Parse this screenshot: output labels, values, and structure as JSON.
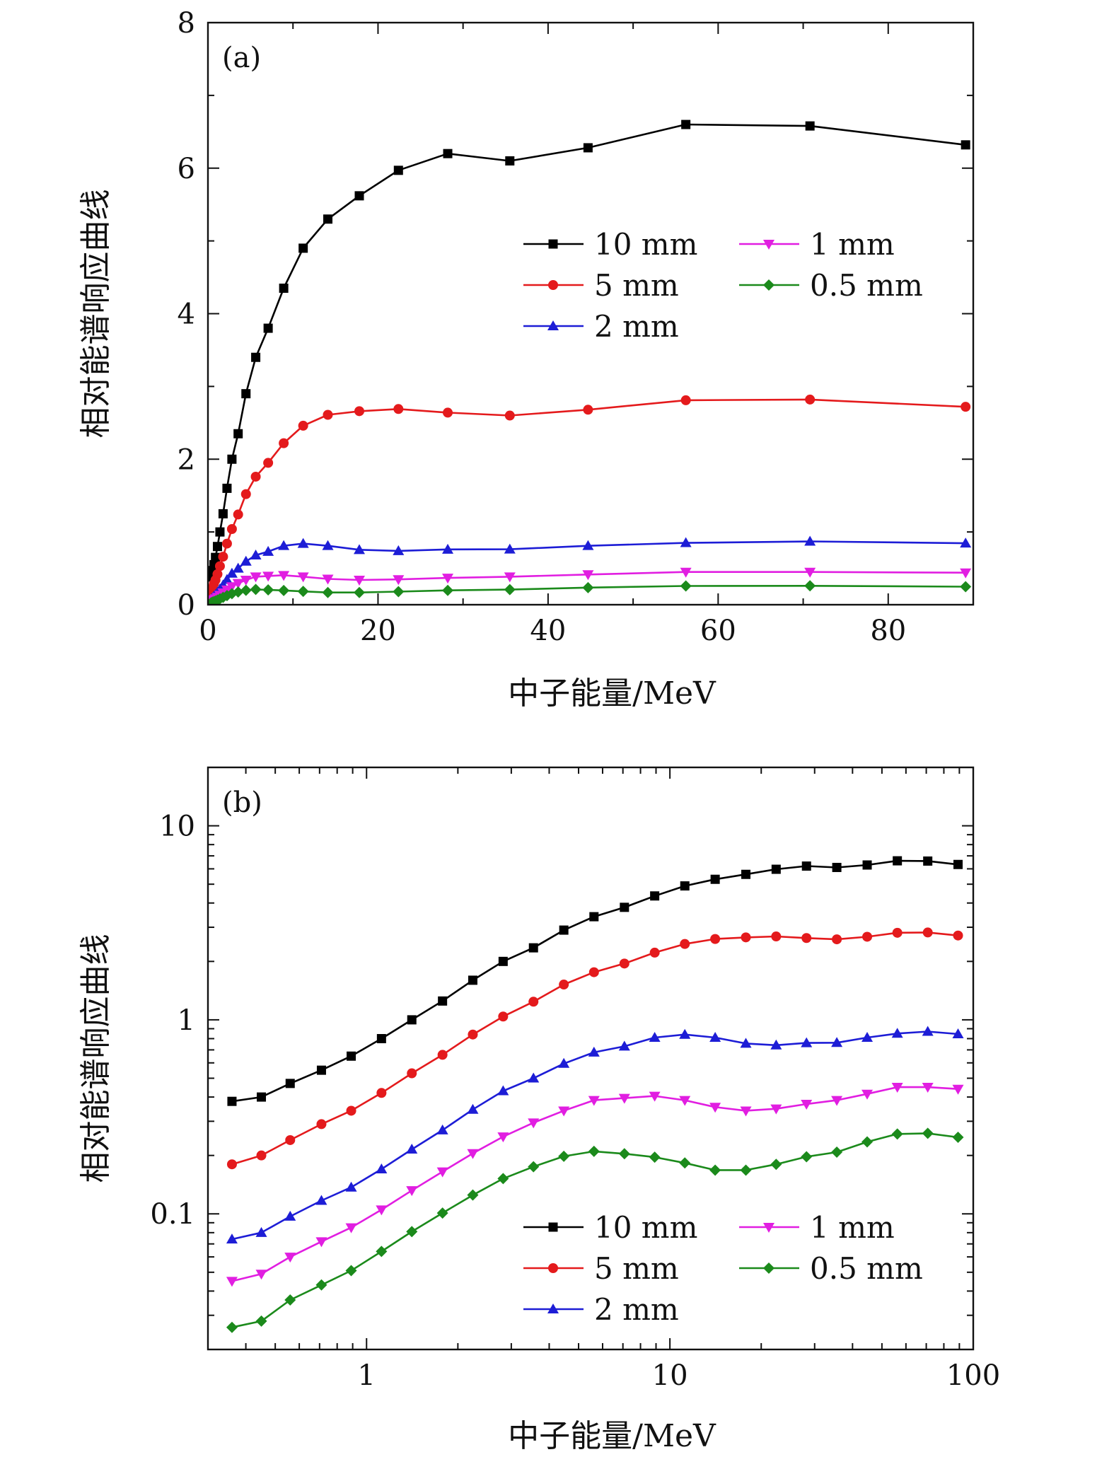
{
  "chart_data": [
    {
      "panel_label": "(a)",
      "type": "line",
      "xscale": "linear",
      "yscale": "linear",
      "xlim": [
        0,
        90
      ],
      "ylim": [
        0,
        8
      ],
      "xticks": [
        0,
        20,
        40,
        60,
        80
      ],
      "xtick_labels": [
        "0",
        "20",
        "40",
        "60",
        "80"
      ],
      "yticks": [
        0,
        2,
        4,
        6,
        8
      ],
      "ytick_labels": [
        "0",
        "2",
        "4",
        "6",
        "8"
      ],
      "xlabel": "中子能量/MeV",
      "ylabel": "相对能谱响应曲线",
      "legend_position": "upper-right",
      "x": [
        0.36,
        0.45,
        0.56,
        0.71,
        0.89,
        1.12,
        1.41,
        1.78,
        2.24,
        2.82,
        3.55,
        4.47,
        5.62,
        7.08,
        8.91,
        11.2,
        14.1,
        17.8,
        22.4,
        28.2,
        35.5,
        44.7,
        56.2,
        70.8,
        89.1
      ],
      "series": [
        {
          "name": "10 mm",
          "color": "#000000",
          "marker": "square",
          "values": [
            0.38,
            0.4,
            0.47,
            0.55,
            0.65,
            0.8,
            1.0,
            1.25,
            1.6,
            2.0,
            2.35,
            2.9,
            3.4,
            3.8,
            4.35,
            4.9,
            5.3,
            5.62,
            5.97,
            6.2,
            6.1,
            6.28,
            6.6,
            6.58,
            6.32
          ]
        },
        {
          "name": "5 mm",
          "color": "#e41a1c",
          "marker": "circle",
          "values": [
            0.18,
            0.2,
            0.24,
            0.29,
            0.34,
            0.42,
            0.53,
            0.66,
            0.84,
            1.04,
            1.24,
            1.52,
            1.76,
            1.95,
            2.22,
            2.46,
            2.61,
            2.66,
            2.69,
            2.64,
            2.6,
            2.68,
            2.81,
            2.82,
            2.72
          ]
        },
        {
          "name": "2 mm",
          "color": "#1d1dd6",
          "marker": "triangle-up",
          "values": [
            0.074,
            0.08,
            0.097,
            0.117,
            0.137,
            0.17,
            0.215,
            0.27,
            0.345,
            0.43,
            0.5,
            0.595,
            0.68,
            0.73,
            0.81,
            0.84,
            0.81,
            0.755,
            0.74,
            0.76,
            0.762,
            0.81,
            0.85,
            0.87,
            0.845
          ]
        },
        {
          "name": "1 mm",
          "color": "#e11ee1",
          "marker": "triangle-down",
          "values": [
            0.045,
            0.049,
            0.06,
            0.072,
            0.085,
            0.105,
            0.132,
            0.165,
            0.205,
            0.25,
            0.295,
            0.34,
            0.385,
            0.395,
            0.405,
            0.385,
            0.355,
            0.34,
            0.348,
            0.368,
            0.385,
            0.415,
            0.45,
            0.45,
            0.44
          ]
        },
        {
          "name": "0.5 mm",
          "color": "#1b8a1b",
          "marker": "diamond",
          "values": [
            0.026,
            0.028,
            0.036,
            0.043,
            0.051,
            0.064,
            0.081,
            0.101,
            0.125,
            0.152,
            0.175,
            0.198,
            0.21,
            0.204,
            0.196,
            0.183,
            0.168,
            0.168,
            0.18,
            0.197,
            0.208,
            0.235,
            0.258,
            0.26,
            0.248
          ]
        }
      ]
    },
    {
      "panel_label": "(b)",
      "type": "line",
      "xscale": "log",
      "yscale": "log",
      "xlim": [
        0.3,
        100
      ],
      "ylim": [
        0.02,
        20
      ],
      "xticks": [
        1,
        10,
        100
      ],
      "xtick_labels": [
        "1",
        "10",
        "100"
      ],
      "yticks": [
        0.1,
        1,
        10
      ],
      "ytick_labels": [
        "0.1",
        "1",
        "10"
      ],
      "xlabel": "中子能量/MeV",
      "ylabel": "相对能谱响应曲线",
      "legend_position": "lower-right",
      "x": [
        0.36,
        0.45,
        0.56,
        0.71,
        0.89,
        1.12,
        1.41,
        1.78,
        2.24,
        2.82,
        3.55,
        4.47,
        5.62,
        7.08,
        8.91,
        11.2,
        14.1,
        17.8,
        22.4,
        28.2,
        35.5,
        44.7,
        56.2,
        70.8,
        89.1
      ],
      "series": [
        {
          "name": "10 mm",
          "color": "#000000",
          "marker": "square",
          "values": [
            0.38,
            0.4,
            0.47,
            0.55,
            0.65,
            0.8,
            1.0,
            1.25,
            1.6,
            2.0,
            2.35,
            2.9,
            3.4,
            3.8,
            4.35,
            4.9,
            5.3,
            5.62,
            5.97,
            6.2,
            6.1,
            6.28,
            6.6,
            6.58,
            6.32
          ]
        },
        {
          "name": "5 mm",
          "color": "#e41a1c",
          "marker": "circle",
          "values": [
            0.18,
            0.2,
            0.24,
            0.29,
            0.34,
            0.42,
            0.53,
            0.66,
            0.84,
            1.04,
            1.24,
            1.52,
            1.76,
            1.95,
            2.22,
            2.46,
            2.61,
            2.66,
            2.69,
            2.64,
            2.6,
            2.68,
            2.81,
            2.82,
            2.72
          ]
        },
        {
          "name": "2 mm",
          "color": "#1d1dd6",
          "marker": "triangle-up",
          "values": [
            0.074,
            0.08,
            0.097,
            0.117,
            0.137,
            0.17,
            0.215,
            0.27,
            0.345,
            0.43,
            0.5,
            0.595,
            0.68,
            0.73,
            0.81,
            0.84,
            0.81,
            0.755,
            0.74,
            0.76,
            0.762,
            0.81,
            0.85,
            0.87,
            0.845
          ]
        },
        {
          "name": "1 mm",
          "color": "#e11ee1",
          "marker": "triangle-down",
          "values": [
            0.045,
            0.049,
            0.06,
            0.072,
            0.085,
            0.105,
            0.132,
            0.165,
            0.205,
            0.25,
            0.295,
            0.34,
            0.385,
            0.395,
            0.405,
            0.385,
            0.355,
            0.34,
            0.348,
            0.368,
            0.385,
            0.415,
            0.45,
            0.45,
            0.44
          ]
        },
        {
          "name": "0.5 mm",
          "color": "#1b8a1b",
          "marker": "diamond",
          "values": [
            0.026,
            0.028,
            0.036,
            0.043,
            0.051,
            0.064,
            0.081,
            0.101,
            0.125,
            0.152,
            0.175,
            0.198,
            0.21,
            0.204,
            0.196,
            0.183,
            0.168,
            0.168,
            0.18,
            0.197,
            0.208,
            0.235,
            0.258,
            0.26,
            0.248
          ]
        }
      ]
    }
  ]
}
